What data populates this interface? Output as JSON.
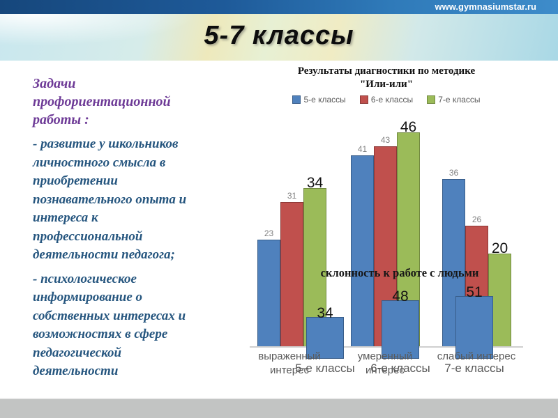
{
  "page": {
    "url": "www.gymnasiumstar.ru",
    "slide_title": "5-7 классы"
  },
  "left_panel": {
    "heading": "Задачи профориентационной работы :",
    "paragraphs": [
      "- развитие у школьников личностного смысла в приобретении познавательного опыта и интереса к профессиональной деятельности педагога;",
      "- психологическое информирование о собственных интересах и возможностях в сфере педагогической деятельности"
    ]
  },
  "chart_data": [
    {
      "type": "bar",
      "title": "Результаты диагностики по методике \"Или-или\"",
      "title_lines": [
        "Результаты диагностики по методике",
        "\"Или-или\""
      ],
      "categories": [
        "выраженный интерес",
        "умеренный интерес",
        "слабый интерес"
      ],
      "series": [
        {
          "name": "5-е классы",
          "color": "#4f81bd",
          "border": "#385d8a",
          "values": [
            23,
            41,
            36
          ]
        },
        {
          "name": "6-е классы",
          "color": "#c0504d",
          "border": "#8c3836",
          "values": [
            31,
            43,
            26
          ]
        },
        {
          "name": "7-е классы",
          "color": "#9bbb59",
          "border": "#71893f",
          "values": [
            34,
            46,
            20
          ]
        }
      ],
      "legend_position": "top",
      "grid": false,
      "ylim": [
        0,
        50
      ]
    },
    {
      "type": "bar",
      "title": "склонность к работе с людьми",
      "categories": [
        "5-е классы",
        "6-е классы",
        "7-е классы"
      ],
      "series": [
        {
          "name": "склонность к работе с людьми",
          "color": "#4f81bd",
          "border": "#385d8a",
          "values": [
            34,
            48,
            51
          ]
        }
      ],
      "legend_position": "none",
      "grid": false,
      "ylim": [
        0,
        55
      ]
    }
  ],
  "theme": {
    "topbar_blue_dark": "#16477c",
    "topbar_blue_light": "#3e8cca",
    "banner_cyan": "#c9e7ee",
    "banner_yellow": "#f0ecc4",
    "heading_purple": "#6e3b97",
    "body_blue": "#26567f",
    "label_gray": "#595959",
    "footer_gray": "#c2c4c3"
  }
}
